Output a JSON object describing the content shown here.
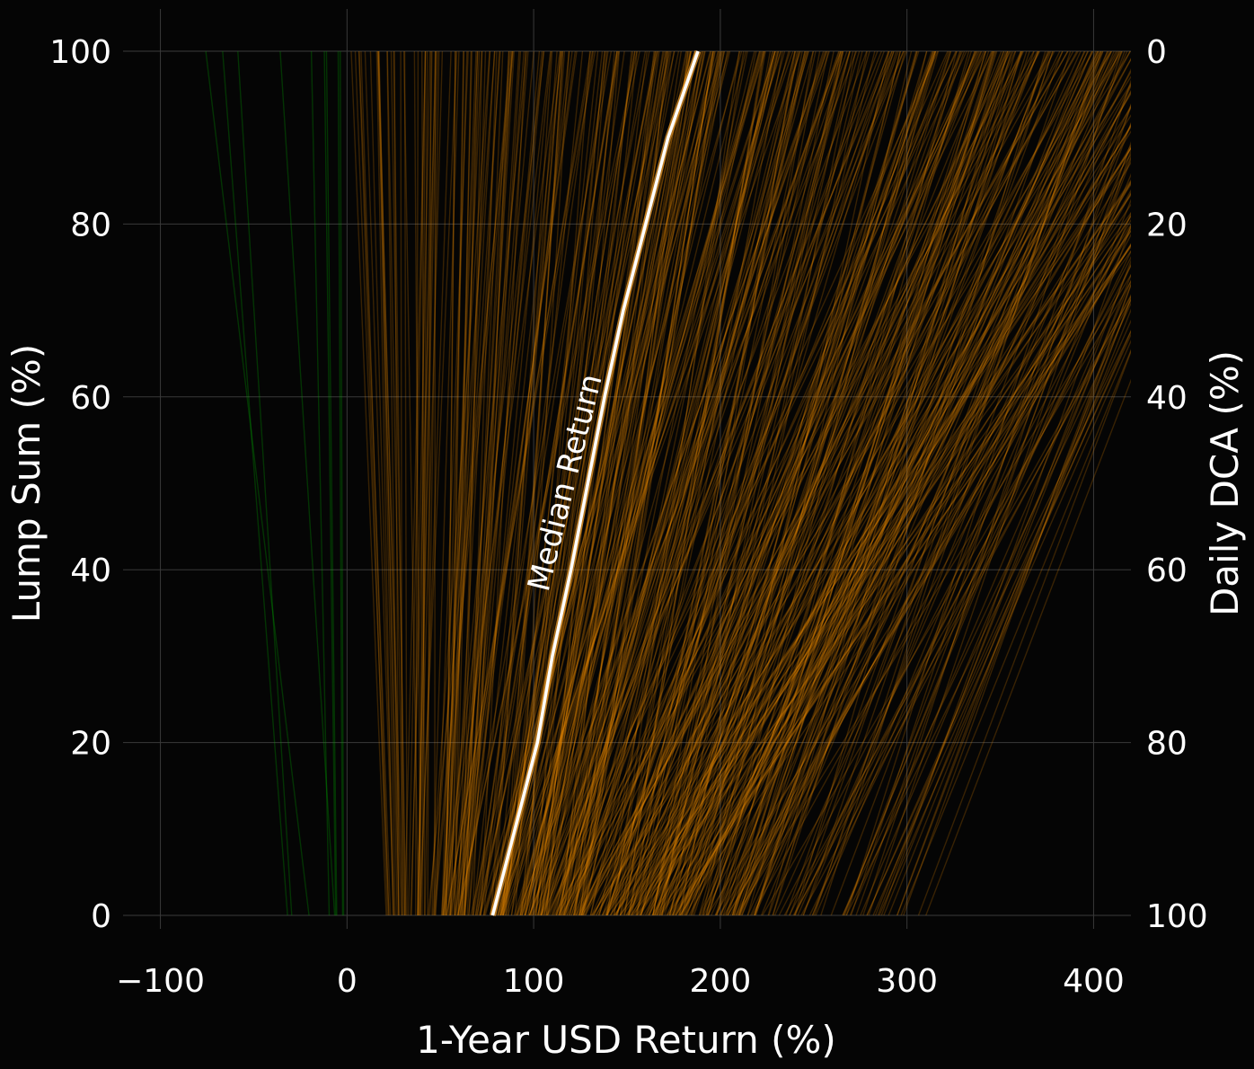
{
  "chart_data": {
    "type": "line",
    "xlabel": "1-Year USD Return (%)",
    "ylabel": "Lump Sum (%)",
    "ylabel_right": "Daily DCA (%)",
    "xlim": [
      -120,
      420
    ],
    "ylim": [
      0,
      100
    ],
    "x_ticks": [
      -100,
      0,
      100,
      200,
      300,
      400
    ],
    "x_tick_labels": [
      "−100",
      "0",
      "100",
      "200",
      "300",
      "400"
    ],
    "y_ticks": [
      0,
      20,
      40,
      60,
      80,
      100
    ],
    "y_tick_labels": [
      "0",
      "20",
      "40",
      "60",
      "80",
      "100"
    ],
    "y_right_tick_labels": [
      "100",
      "80",
      "60",
      "40",
      "20",
      "0"
    ],
    "grid": true,
    "colors": {
      "background": "#050505",
      "negative_return": "#00b000",
      "positive_return": "#f08c00",
      "median": "#ffffff",
      "grid": "#3a3a3a"
    },
    "annotation": "Median Return",
    "median_series": {
      "lump_sum_pct": [
        0,
        10,
        20,
        30,
        40,
        50,
        60,
        70,
        80,
        90,
        100
      ],
      "return_pct": [
        78,
        90,
        102,
        110,
        120,
        129,
        138,
        148,
        160,
        172,
        188
      ]
    }
  }
}
